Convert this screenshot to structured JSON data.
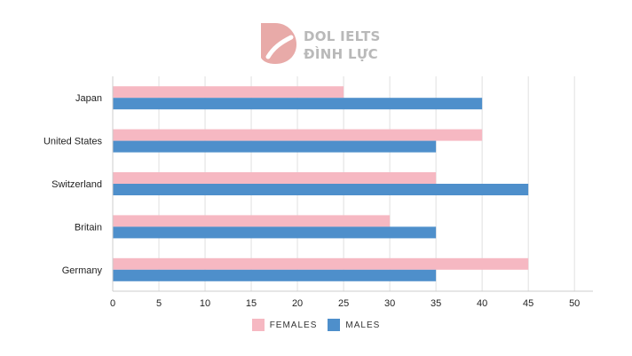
{
  "brand": {
    "line1": "DOL IELTS",
    "line2": "ĐÌNH LỰC",
    "color": "#e8aaa8"
  },
  "chart_data": {
    "type": "bar",
    "orientation": "horizontal",
    "title": "",
    "xlabel": "",
    "ylabel": "",
    "categories": [
      "Japan",
      "United States",
      "Switzerland",
      "Britain",
      "Germany"
    ],
    "series": [
      {
        "name": "FEMALES",
        "color": "#f6b8c2",
        "values": [
          25,
          40,
          35,
          30,
          45
        ]
      },
      {
        "name": "MALES",
        "color": "#4e8fcb",
        "values": [
          40,
          35,
          45,
          35,
          35
        ]
      }
    ],
    "xlim": [
      0,
      52
    ],
    "xticks": [
      0,
      5,
      10,
      15,
      20,
      25,
      30,
      35,
      40,
      45,
      50
    ],
    "grid": "vertical",
    "legend": "bottom-center"
  }
}
